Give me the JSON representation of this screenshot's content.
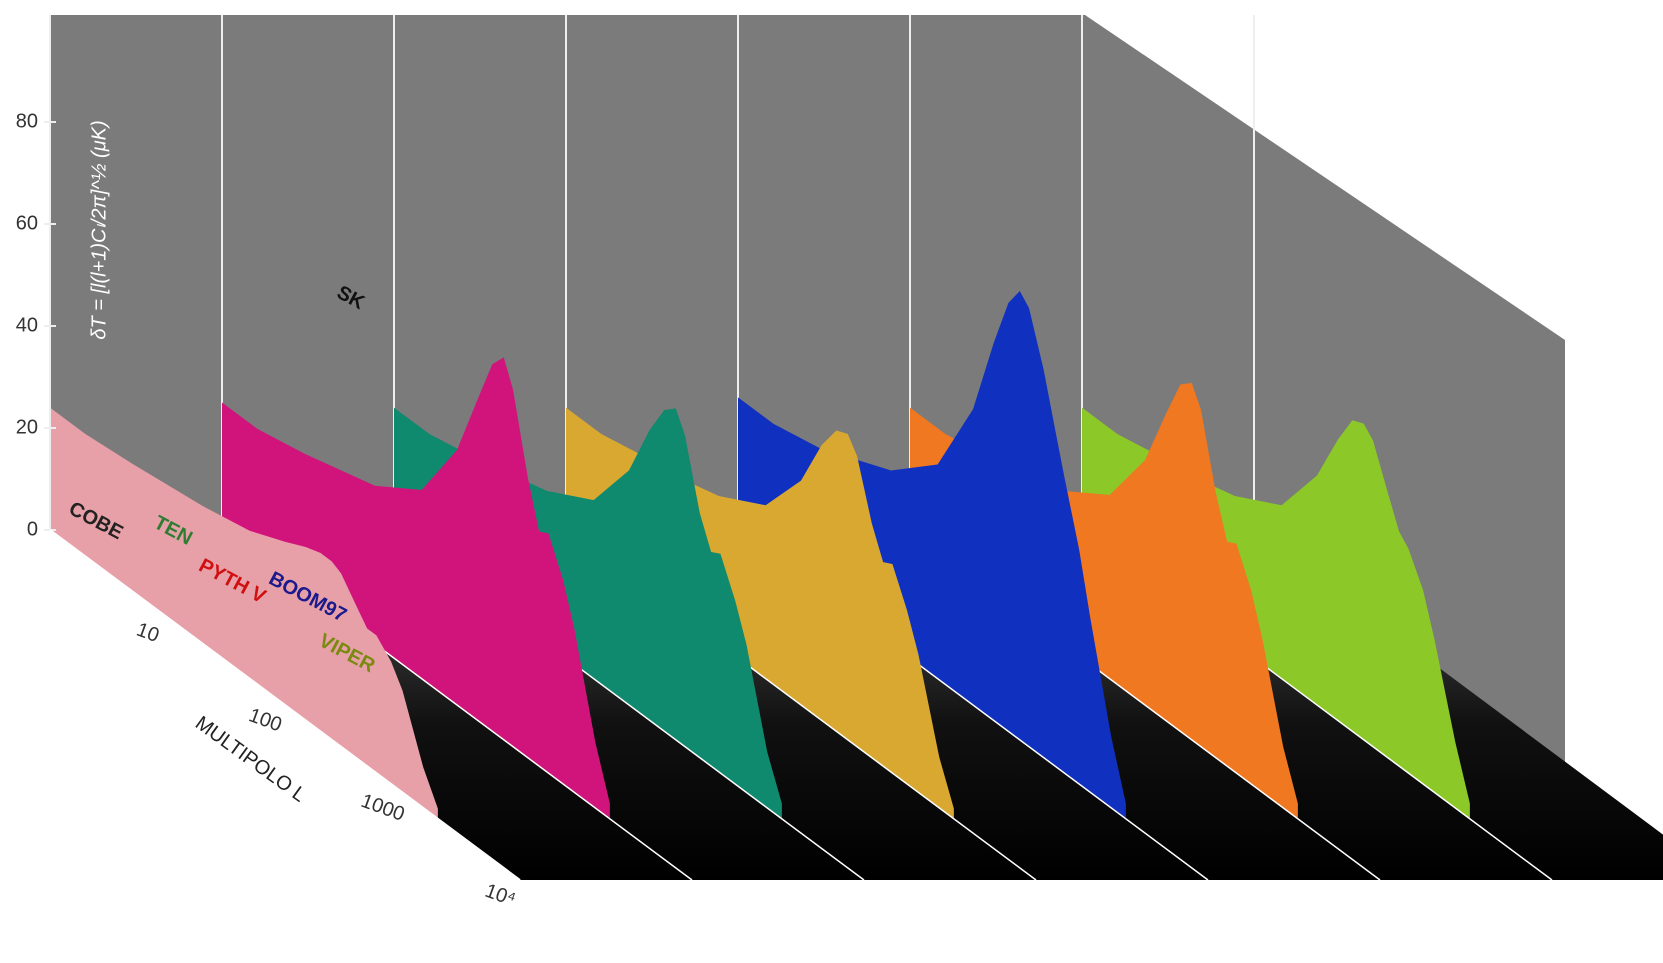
{
  "chart_data": {
    "type": "3d-spectra",
    "y_label": "δT = [l(l+1)Cₗ/2π]^½ (μK)",
    "x_label": "MULTIPOLO L",
    "x_log": true,
    "xlim": [
      1,
      10000
    ],
    "xticks": [
      10,
      100,
      1000,
      {
        "value": 10000,
        "label": "10⁴"
      }
    ],
    "ylim": [
      0,
      90
    ],
    "yticks": [
      0,
      20,
      40,
      60,
      80
    ],
    "x": [
      2,
      5,
      10,
      20,
      50,
      100,
      150,
      200,
      250,
      300,
      400,
      500,
      600,
      800,
      1000,
      1500,
      2000
    ],
    "series": [
      {
        "color": "#e8a0a8",
        "values": [
          24,
          25,
          26,
          27,
          29,
          32,
          34,
          35,
          35,
          34,
          30,
          27,
          27,
          24,
          20,
          8,
          2
        ]
      },
      {
        "color": "#d0147c",
        "values": [
          25,
          27,
          29,
          31,
          37,
          50,
          63,
          72,
          75,
          70,
          55,
          46,
          47,
          40,
          32,
          13,
          3
        ]
      },
      {
        "color": "#0f8a6e",
        "values": [
          24,
          26,
          28,
          30,
          35,
          46,
          57,
          63,
          65,
          61,
          48,
          42,
          43,
          36,
          29,
          11,
          3
        ]
      },
      {
        "color": "#d8a830",
        "values": [
          24,
          26,
          27,
          29,
          34,
          44,
          54,
          59,
          60,
          57,
          46,
          40,
          41,
          34,
          27,
          10,
          2
        ]
      },
      {
        "color": "#1030c0",
        "values": [
          26,
          28,
          31,
          34,
          42,
          58,
          74,
          84,
          88,
          86,
          76,
          66,
          58,
          46,
          34,
          14,
          3
        ]
      },
      {
        "color": "#f07820",
        "values": [
          24,
          26,
          28,
          30,
          36,
          48,
          60,
          68,
          70,
          66,
          52,
          44,
          45,
          38,
          30,
          12,
          3
        ]
      },
      {
        "color": "#8cc828",
        "values": [
          24,
          26,
          27,
          29,
          34,
          45,
          55,
          61,
          62,
          60,
          52,
          46,
          44,
          38,
          30,
          13,
          3
        ]
      }
    ],
    "annotations": [
      {
        "text": "COBE",
        "color": "#222222"
      },
      {
        "text": "TEN",
        "color": "#2e7d32"
      },
      {
        "text": "PYTH V",
        "color": "#d01010"
      },
      {
        "text": "BOOM97",
        "color": "#1a1a8c"
      },
      {
        "text": "VIPER",
        "color": "#7a8a10"
      },
      {
        "text": "SK",
        "color": "#111111"
      }
    ]
  }
}
